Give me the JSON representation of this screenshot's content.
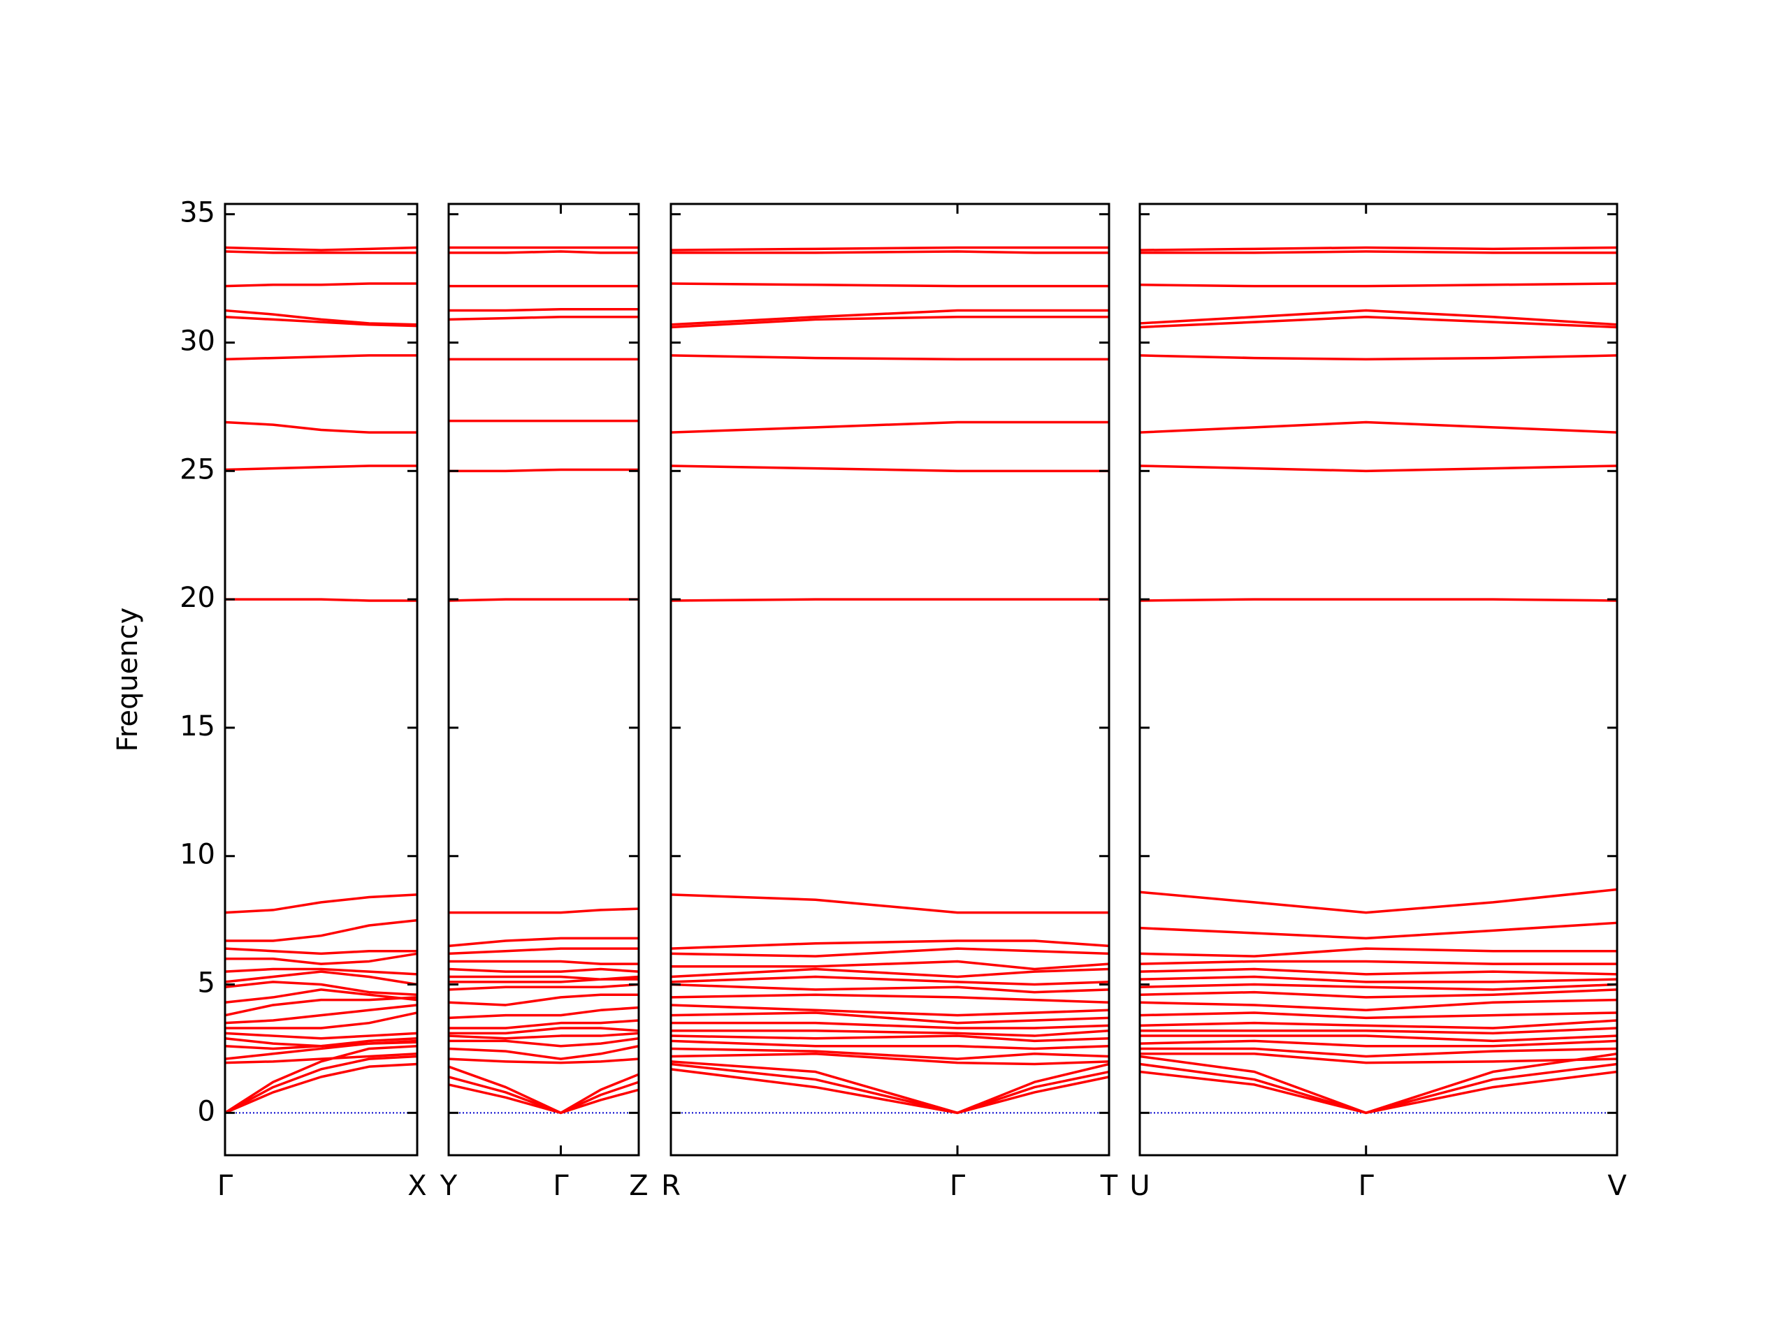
{
  "chart_data": [
    {
      "type": "line",
      "ylabel": "Frequency",
      "ylim": [
        -1.65,
        35.4
      ],
      "yticks": [
        0,
        5,
        10,
        15,
        20,
        25,
        30,
        35
      ],
      "zero_line_color": "#0000cc",
      "color": "#ff0000",
      "xlim": [
        0,
        1
      ],
      "xticks": [
        {
          "value": 0,
          "label": "Γ"
        },
        {
          "value": 1,
          "label": "X"
        }
      ],
      "x": [
        0,
        0.25,
        0.5,
        0.75,
        1
      ],
      "series": [
        {
          "values": [
            20,
            20,
            20,
            19.95,
            19.95
          ]
        },
        {
          "values": [
            25.05,
            25.1,
            25.15,
            25.2,
            25.2
          ]
        },
        {
          "values": [
            26.9,
            26.8,
            26.6,
            26.5,
            26.5
          ]
        },
        {
          "values": [
            29.35,
            29.4,
            29.45,
            29.5,
            29.5
          ]
        },
        {
          "values": [
            31.0,
            30.9,
            30.8,
            30.7,
            30.65
          ]
        },
        {
          "values": [
            31.25,
            31.1,
            30.9,
            30.75,
            30.7
          ]
        },
        {
          "values": [
            32.2,
            32.25,
            32.25,
            32.3,
            32.3
          ]
        },
        {
          "values": [
            33.55,
            33.5,
            33.5,
            33.5,
            33.5
          ]
        },
        {
          "values": [
            33.7,
            33.65,
            33.6,
            33.65,
            33.7
          ]
        },
        {
          "values": [
            0,
            1.0,
            1.7,
            2.1,
            2.2
          ]
        },
        {
          "values": [
            0,
            0.8,
            1.4,
            1.8,
            1.9
          ]
        },
        {
          "values": [
            0,
            1.2,
            2.0,
            2.5,
            2.6
          ]
        },
        {
          "values": [
            1.95,
            2.0,
            2.1,
            2.2,
            2.3
          ]
        },
        {
          "values": [
            2.1,
            2.3,
            2.5,
            2.7,
            2.8
          ]
        },
        {
          "values": [
            2.6,
            2.5,
            2.6,
            2.8,
            2.9
          ]
        },
        {
          "values": [
            2.9,
            2.7,
            2.6,
            2.7,
            2.75
          ]
        },
        {
          "values": [
            3.1,
            3.0,
            2.9,
            3.0,
            3.1
          ]
        },
        {
          "values": [
            3.3,
            3.3,
            3.3,
            3.5,
            3.9
          ]
        },
        {
          "values": [
            3.5,
            3.6,
            3.8,
            4.0,
            4.2
          ]
        },
        {
          "values": [
            3.8,
            4.2,
            4.4,
            4.4,
            4.5
          ]
        },
        {
          "values": [
            4.3,
            4.5,
            4.8,
            4.6,
            4.4
          ]
        },
        {
          "values": [
            4.9,
            5.1,
            5.0,
            4.7,
            4.6
          ]
        },
        {
          "values": [
            5.1,
            5.3,
            5.5,
            5.3,
            5.0
          ]
        },
        {
          "values": [
            5.5,
            5.6,
            5.6,
            5.5,
            5.4
          ]
        },
        {
          "values": [
            6.0,
            6.0,
            5.8,
            5.9,
            6.2
          ]
        },
        {
          "values": [
            6.4,
            6.3,
            6.2,
            6.3,
            6.3
          ]
        },
        {
          "values": [
            6.7,
            6.7,
            6.9,
            7.3,
            7.5
          ]
        },
        {
          "values": [
            7.8,
            7.9,
            8.2,
            8.4,
            8.5
          ]
        }
      ]
    },
    {
      "type": "line",
      "color": "#ff0000",
      "xlim": [
        0,
        1
      ],
      "xticks": [
        {
          "value": 0,
          "label": "Y"
        },
        {
          "value": 0.59,
          "label": "Γ"
        },
        {
          "value": 1,
          "label": "Z"
        }
      ],
      "x": [
        0,
        0.3,
        0.59,
        0.8,
        1
      ],
      "series": [
        {
          "values": [
            19.95,
            20,
            20,
            20,
            20
          ]
        },
        {
          "values": [
            25.0,
            25.0,
            25.05,
            25.05,
            25.05
          ]
        },
        {
          "values": [
            26.95,
            26.95,
            26.95,
            26.95,
            26.95
          ]
        },
        {
          "values": [
            29.35,
            29.35,
            29.35,
            29.35,
            29.35
          ]
        },
        {
          "values": [
            30.9,
            30.95,
            31.0,
            31.0,
            31.0
          ]
        },
        {
          "values": [
            31.25,
            31.25,
            31.3,
            31.3,
            31.3
          ]
        },
        {
          "values": [
            32.2,
            32.2,
            32.2,
            32.2,
            32.2
          ]
        },
        {
          "values": [
            33.5,
            33.5,
            33.55,
            33.5,
            33.5
          ]
        },
        {
          "values": [
            33.7,
            33.7,
            33.7,
            33.7,
            33.7
          ]
        },
        {
          "values": [
            1.1,
            0.6,
            0,
            0.5,
            0.9
          ]
        },
        {
          "values": [
            1.4,
            0.8,
            0,
            0.7,
            1.2
          ]
        },
        {
          "values": [
            1.8,
            1.0,
            0,
            0.9,
            1.5
          ]
        },
        {
          "values": [
            2.1,
            2.0,
            1.95,
            2.0,
            2.1
          ]
        },
        {
          "values": [
            2.5,
            2.4,
            2.1,
            2.3,
            2.6
          ]
        },
        {
          "values": [
            2.8,
            2.8,
            2.6,
            2.7,
            2.9
          ]
        },
        {
          "values": [
            3.0,
            2.9,
            3.0,
            3.0,
            3.1
          ]
        },
        {
          "values": [
            3.1,
            3.1,
            3.3,
            3.3,
            3.2
          ]
        },
        {
          "values": [
            3.3,
            3.3,
            3.5,
            3.5,
            3.6
          ]
        },
        {
          "values": [
            3.7,
            3.8,
            3.8,
            4.0,
            4.1
          ]
        },
        {
          "values": [
            4.3,
            4.2,
            4.5,
            4.6,
            4.6
          ]
        },
        {
          "values": [
            4.8,
            4.9,
            4.9,
            4.9,
            5.0
          ]
        },
        {
          "values": [
            5.1,
            5.1,
            5.1,
            5.2,
            5.3
          ]
        },
        {
          "values": [
            5.3,
            5.3,
            5.3,
            5.2,
            5.2
          ]
        },
        {
          "values": [
            5.6,
            5.5,
            5.5,
            5.6,
            5.5
          ]
        },
        {
          "values": [
            5.9,
            5.9,
            5.9,
            5.8,
            5.8
          ]
        },
        {
          "values": [
            6.2,
            6.3,
            6.4,
            6.4,
            6.4
          ]
        },
        {
          "values": [
            6.5,
            6.7,
            6.8,
            6.8,
            6.8
          ]
        },
        {
          "values": [
            7.8,
            7.8,
            7.8,
            7.9,
            7.95
          ]
        }
      ]
    },
    {
      "type": "line",
      "color": "#ff0000",
      "xlim": [
        0,
        1
      ],
      "xticks": [
        {
          "value": 0,
          "label": "R"
        },
        {
          "value": 0.654,
          "label": "Γ"
        },
        {
          "value": 1,
          "label": "T"
        }
      ],
      "x": [
        0,
        0.33,
        0.654,
        0.83,
        1
      ],
      "series": [
        {
          "values": [
            19.95,
            20,
            20,
            20,
            20
          ]
        },
        {
          "values": [
            25.2,
            25.1,
            25.0,
            25.0,
            25.0
          ]
        },
        {
          "values": [
            26.5,
            26.7,
            26.9,
            26.9,
            26.9
          ]
        },
        {
          "values": [
            29.5,
            29.4,
            29.35,
            29.35,
            29.35
          ]
        },
        {
          "values": [
            30.6,
            30.9,
            31.0,
            31.0,
            31.0
          ]
        },
        {
          "values": [
            30.7,
            31.0,
            31.25,
            31.25,
            31.25
          ]
        },
        {
          "values": [
            32.3,
            32.25,
            32.2,
            32.2,
            32.2
          ]
        },
        {
          "values": [
            33.5,
            33.5,
            33.55,
            33.5,
            33.5
          ]
        },
        {
          "values": [
            33.6,
            33.65,
            33.7,
            33.7,
            33.7
          ]
        },
        {
          "values": [
            1.7,
            1.0,
            0,
            0.8,
            1.4
          ]
        },
        {
          "values": [
            1.9,
            1.3,
            0,
            1.0,
            1.6
          ]
        },
        {
          "values": [
            2.0,
            1.6,
            0,
            1.2,
            1.9
          ]
        },
        {
          "values": [
            2.2,
            2.3,
            1.95,
            1.9,
            2.0
          ]
        },
        {
          "values": [
            2.5,
            2.4,
            2.1,
            2.3,
            2.2
          ]
        },
        {
          "values": [
            2.8,
            2.6,
            2.6,
            2.5,
            2.6
          ]
        },
        {
          "values": [
            3.0,
            2.9,
            3.0,
            2.8,
            2.9
          ]
        },
        {
          "values": [
            3.2,
            3.2,
            3.1,
            3.0,
            3.2
          ]
        },
        {
          "values": [
            3.5,
            3.5,
            3.3,
            3.3,
            3.4
          ]
        },
        {
          "values": [
            3.8,
            3.9,
            3.5,
            3.6,
            3.7
          ]
        },
        {
          "values": [
            4.2,
            4.0,
            3.8,
            3.9,
            4.0
          ]
        },
        {
          "values": [
            4.5,
            4.6,
            4.5,
            4.4,
            4.3
          ]
        },
        {
          "values": [
            5.0,
            4.8,
            4.9,
            4.7,
            4.8
          ]
        },
        {
          "values": [
            5.1,
            5.3,
            5.1,
            5.0,
            5.1
          ]
        },
        {
          "values": [
            5.3,
            5.6,
            5.3,
            5.5,
            5.6
          ]
        },
        {
          "values": [
            5.7,
            5.7,
            5.9,
            5.6,
            5.8
          ]
        },
        {
          "values": [
            6.2,
            6.1,
            6.4,
            6.3,
            6.2
          ]
        },
        {
          "values": [
            6.4,
            6.6,
            6.7,
            6.7,
            6.5
          ]
        },
        {
          "values": [
            8.5,
            8.3,
            7.8,
            7.8,
            7.8
          ]
        }
      ]
    },
    {
      "type": "line",
      "color": "#ff0000",
      "xlim": [
        0,
        1
      ],
      "xticks": [
        {
          "value": 0,
          "label": "U"
        },
        {
          "value": 0.474,
          "label": "Γ"
        },
        {
          "value": 1,
          "label": "V"
        }
      ],
      "x": [
        0,
        0.24,
        0.474,
        0.74,
        1
      ],
      "series": [
        {
          "values": [
            19.95,
            20,
            20,
            20,
            19.95
          ]
        },
        {
          "values": [
            25.2,
            25.1,
            25.0,
            25.1,
            25.2
          ]
        },
        {
          "values": [
            26.5,
            26.7,
            26.9,
            26.7,
            26.5
          ]
        },
        {
          "values": [
            29.5,
            29.4,
            29.35,
            29.4,
            29.5
          ]
        },
        {
          "values": [
            30.6,
            30.8,
            31.0,
            30.8,
            30.6
          ]
        },
        {
          "values": [
            30.75,
            31.0,
            31.25,
            31.0,
            30.7
          ]
        },
        {
          "values": [
            32.25,
            32.2,
            32.2,
            32.25,
            32.3
          ]
        },
        {
          "values": [
            33.5,
            33.5,
            33.55,
            33.5,
            33.5
          ]
        },
        {
          "values": [
            33.6,
            33.65,
            33.7,
            33.65,
            33.7
          ]
        },
        {
          "values": [
            1.6,
            1.1,
            0,
            1.0,
            1.6
          ]
        },
        {
          "values": [
            1.9,
            1.3,
            0,
            1.3,
            1.9
          ]
        },
        {
          "values": [
            2.2,
            1.6,
            0,
            1.6,
            2.3
          ]
        },
        {
          "values": [
            2.3,
            2.3,
            1.95,
            2.0,
            2.1
          ]
        },
        {
          "values": [
            2.5,
            2.5,
            2.2,
            2.4,
            2.5
          ]
        },
        {
          "values": [
            2.7,
            2.8,
            2.6,
            2.6,
            2.8
          ]
        },
        {
          "values": [
            3.0,
            3.0,
            3.0,
            2.8,
            3.0
          ]
        },
        {
          "values": [
            3.2,
            3.2,
            3.2,
            3.1,
            3.3
          ]
        },
        {
          "values": [
            3.4,
            3.5,
            3.4,
            3.3,
            3.6
          ]
        },
        {
          "values": [
            3.8,
            3.9,
            3.7,
            3.8,
            3.9
          ]
        },
        {
          "values": [
            4.3,
            4.2,
            4.0,
            4.3,
            4.4
          ]
        },
        {
          "values": [
            4.6,
            4.7,
            4.5,
            4.6,
            4.8
          ]
        },
        {
          "values": [
            4.9,
            5.0,
            4.9,
            4.8,
            5.0
          ]
        },
        {
          "values": [
            5.2,
            5.3,
            5.1,
            5.1,
            5.2
          ]
        },
        {
          "values": [
            5.5,
            5.6,
            5.4,
            5.5,
            5.4
          ]
        },
        {
          "values": [
            5.8,
            5.9,
            5.9,
            5.8,
            5.8
          ]
        },
        {
          "values": [
            6.2,
            6.1,
            6.4,
            6.3,
            6.3
          ]
        },
        {
          "values": [
            7.2,
            7.0,
            6.8,
            7.1,
            7.4
          ]
        },
        {
          "values": [
            8.6,
            8.2,
            7.8,
            8.2,
            8.7
          ]
        }
      ]
    }
  ]
}
